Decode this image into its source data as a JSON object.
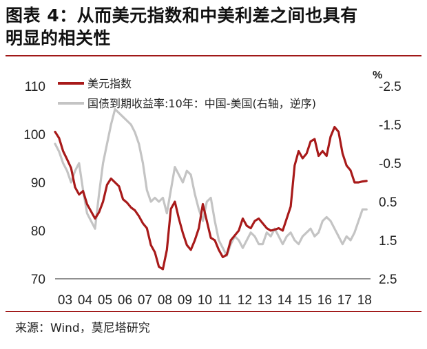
{
  "header": {
    "title_line1": "图表 4：从而美元指数和中美利差之间也具有",
    "title_line2": "明显的相关性"
  },
  "footer": {
    "source": "来源：Wind，莫尼塔研究"
  },
  "colors": {
    "dxy": "#a81a1a",
    "spread": "#c4c4c4",
    "rule": "#a01818"
  },
  "chart_data": {
    "type": "line",
    "title": "",
    "xlabel": "",
    "ylabel": "",
    "y2label": "%",
    "x_ticks": [
      "03",
      "04",
      "05",
      "06",
      "07",
      "08",
      "09",
      "10",
      "11",
      "12",
      "13",
      "14",
      "15",
      "16",
      "17",
      "18"
    ],
    "ylim": [
      70,
      110
    ],
    "y_ticks": [
      "110",
      "100",
      "90",
      "80",
      "70"
    ],
    "y2lim": [
      -2.5,
      2.5
    ],
    "y2_inverted": true,
    "y2_ticks": [
      "-2.5",
      "-1.5",
      "-0.5",
      "0.5",
      "1.5",
      "2.5"
    ],
    "legend_position": "top-left",
    "grid": false,
    "series": [
      {
        "name": "美元指数",
        "axis": "left",
        "x": [
          2003.0,
          2003.2,
          2003.4,
          2003.6,
          2003.8,
          2004.0,
          2004.2,
          2004.4,
          2004.6,
          2004.8,
          2005.0,
          2005.2,
          2005.4,
          2005.6,
          2005.8,
          2006.0,
          2006.2,
          2006.4,
          2006.6,
          2006.8,
          2007.0,
          2007.2,
          2007.4,
          2007.6,
          2007.8,
          2008.0,
          2008.2,
          2008.4,
          2008.6,
          2008.8,
          2009.0,
          2009.2,
          2009.4,
          2009.6,
          2009.8,
          2010.0,
          2010.2,
          2010.4,
          2010.6,
          2010.8,
          2011.0,
          2011.2,
          2011.4,
          2011.6,
          2011.8,
          2012.0,
          2012.2,
          2012.4,
          2012.6,
          2012.8,
          2013.0,
          2013.2,
          2013.4,
          2013.6,
          2013.8,
          2014.0,
          2014.2,
          2014.4,
          2014.6,
          2014.8,
          2015.0,
          2015.2,
          2015.4,
          2015.6,
          2015.8,
          2016.0,
          2016.2,
          2016.4,
          2016.6,
          2016.8,
          2017.0,
          2017.2,
          2017.4,
          2017.6,
          2017.8,
          2018.0,
          2018.2,
          2018.4,
          2018.6
        ],
        "values": [
          100.5,
          99.2,
          96.5,
          94.8,
          93.0,
          89.0,
          87.5,
          88.2,
          85.5,
          84.0,
          82.5,
          83.8,
          86.0,
          89.5,
          90.8,
          90.0,
          89.2,
          86.5,
          85.8,
          84.8,
          84.2,
          83.0,
          81.5,
          80.5,
          77.0,
          75.5,
          72.5,
          72.0,
          76.0,
          84.5,
          86.0,
          82.5,
          79.5,
          77.0,
          76.0,
          78.0,
          80.5,
          85.5,
          82.0,
          78.5,
          78.0,
          76.0,
          74.5,
          75.0,
          78.0,
          79.0,
          80.0,
          82.5,
          81.0,
          80.5,
          82.0,
          82.5,
          81.5,
          80.5,
          80.0,
          80.2,
          80.5,
          80.0,
          82.5,
          85.0,
          93.5,
          96.5,
          95.0,
          96.0,
          98.5,
          99.0,
          95.5,
          96.5,
          95.5,
          99.5,
          101.5,
          100.5,
          96.0,
          93.5,
          92.5,
          90.0,
          90.0,
          90.2,
          90.3
        ]
      },
      {
        "name": "国债到期收益率:10年：中国-美国(右轴，逆序)",
        "axis": "right",
        "x": [
          2003.0,
          2003.2,
          2003.4,
          2003.6,
          2003.8,
          2004.0,
          2004.2,
          2004.4,
          2004.6,
          2004.8,
          2005.0,
          2005.2,
          2005.4,
          2005.6,
          2005.8,
          2006.0,
          2006.2,
          2006.4,
          2006.6,
          2006.8,
          2007.0,
          2007.2,
          2007.4,
          2007.6,
          2007.8,
          2008.0,
          2008.2,
          2008.4,
          2008.6,
          2008.8,
          2009.0,
          2009.2,
          2009.4,
          2009.6,
          2009.8,
          2010.0,
          2010.2,
          2010.4,
          2010.6,
          2010.8,
          2011.0,
          2011.2,
          2011.4,
          2011.6,
          2011.8,
          2012.0,
          2012.2,
          2012.4,
          2012.6,
          2012.8,
          2013.0,
          2013.2,
          2013.4,
          2013.6,
          2013.8,
          2014.0,
          2014.2,
          2014.4,
          2014.6,
          2014.8,
          2015.0,
          2015.2,
          2015.4,
          2015.6,
          2015.8,
          2016.0,
          2016.2,
          2016.4,
          2016.6,
          2016.8,
          2017.0,
          2017.2,
          2017.4,
          2017.6,
          2017.8,
          2018.0,
          2018.2,
          2018.4,
          2018.6
        ],
        "values": [
          -1.0,
          -0.8,
          -0.5,
          -0.3,
          0.0,
          -0.3,
          -0.5,
          0.2,
          0.8,
          1.0,
          1.2,
          0.3,
          -0.5,
          -1.0,
          -1.5,
          -1.9,
          -1.8,
          -1.7,
          -1.6,
          -1.5,
          -1.3,
          -1.0,
          -0.5,
          0.2,
          0.5,
          0.4,
          0.5,
          0.4,
          0.8,
          0.2,
          -0.4,
          -0.2,
          0.0,
          -0.3,
          -0.2,
          0.3,
          0.7,
          1.0,
          0.5,
          0.4,
          1.0,
          1.5,
          1.7,
          1.9,
          1.6,
          1.4,
          1.5,
          1.7,
          1.5,
          1.3,
          1.4,
          1.6,
          1.6,
          1.3,
          1.4,
          1.2,
          1.4,
          1.6,
          1.4,
          1.3,
          1.5,
          1.6,
          1.4,
          1.3,
          1.2,
          1.4,
          1.3,
          1.0,
          0.9,
          1.0,
          1.2,
          1.4,
          1.6,
          1.4,
          1.5,
          1.3,
          1.0,
          0.7,
          0.7
        ]
      }
    ]
  }
}
